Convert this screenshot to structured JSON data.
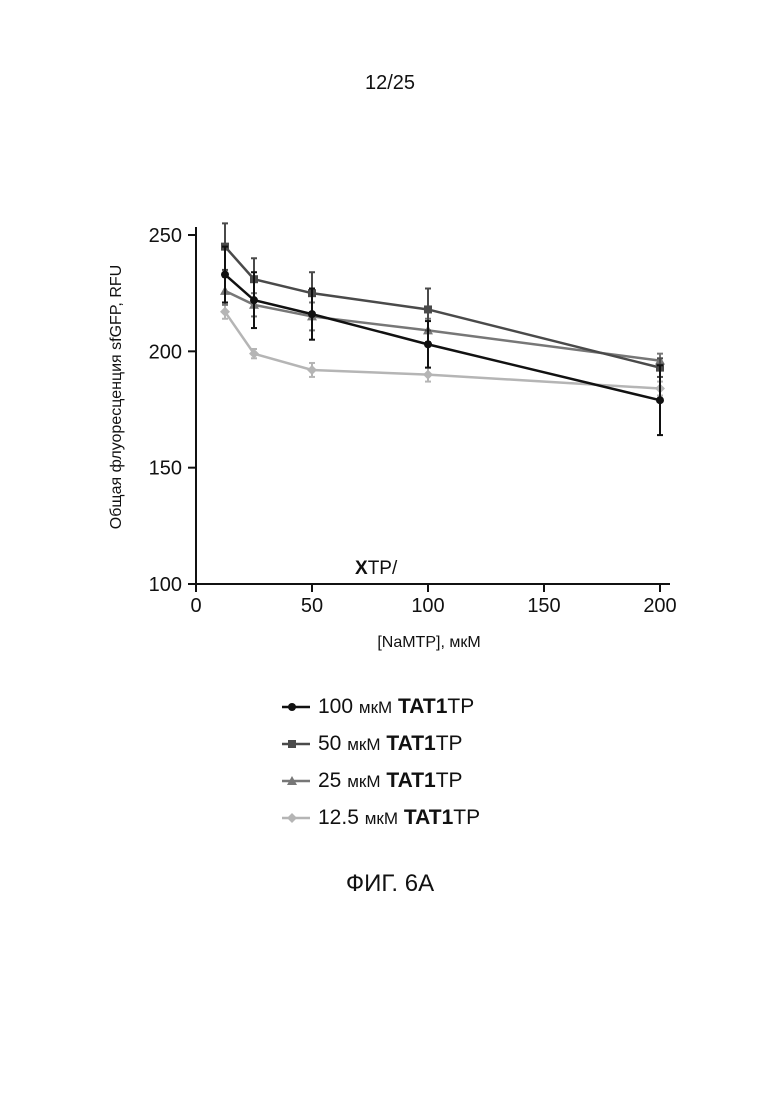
{
  "page_number": "12/25",
  "figure_caption": "ФИГ. 6А",
  "chart_data": {
    "type": "line",
    "xlabel": "[NaMTP], мкМ",
    "ylabel": "Общая флуоресценция sfGFP, RFU",
    "inset_label": {
      "bold": "X",
      "rest": "TP/"
    },
    "xlim": [
      0,
      200
    ],
    "ylim": [
      100,
      250
    ],
    "xticks": [
      0,
      50,
      100,
      150,
      200
    ],
    "yticks": [
      100,
      150,
      200,
      250
    ],
    "x": [
      12.5,
      25,
      50,
      100,
      200
    ],
    "series": [
      {
        "name": "100 мкМ TAT1TP",
        "conc": "100",
        "unit": "мкМ",
        "label_bold": "TAT1",
        "label_suffix": "TP",
        "color": "#111111",
        "marker": "circle",
        "values": [
          233,
          222,
          216,
          203,
          179
        ],
        "errors": [
          12,
          12,
          11,
          10,
          15
        ]
      },
      {
        "name": "50 мкМ TAT1TP",
        "conc": "50",
        "unit": "мкМ",
        "label_bold": "TAT1",
        "label_suffix": "TP",
        "color": "#4a4a4a",
        "marker": "square",
        "values": [
          245,
          231,
          225,
          218,
          193
        ],
        "errors": [
          10,
          9,
          9,
          9,
          4
        ]
      },
      {
        "name": "25 мкМ TAT1TP",
        "conc": "25",
        "unit": "мкМ",
        "label_bold": "TAT1",
        "label_suffix": "TP",
        "color": "#777777",
        "marker": "triangle",
        "values": [
          226,
          220,
          215,
          209,
          196
        ],
        "errors": [
          6,
          5,
          6,
          5,
          3
        ]
      },
      {
        "name": "12.5 мкМ TAT1TP",
        "conc": "12.5",
        "unit": "мкМ",
        "label_bold": "TAT1",
        "label_suffix": "TP",
        "color": "#b5b5b5",
        "marker": "diamond",
        "values": [
          217,
          199,
          192,
          190,
          184
        ],
        "errors": [
          3,
          2,
          3,
          3,
          3
        ]
      }
    ]
  }
}
